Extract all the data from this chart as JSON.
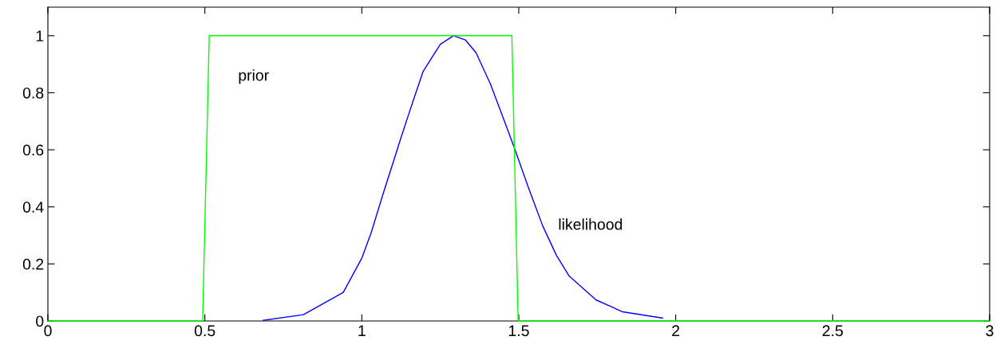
{
  "chart_data": {
    "type": "line",
    "xlim": [
      0,
      3
    ],
    "ylim": [
      0,
      1.1
    ],
    "xticks": [
      0,
      0.5,
      1,
      1.5,
      2,
      2.5,
      3
    ],
    "yticks": [
      0,
      0.2,
      0.4,
      0.6,
      0.8,
      1
    ],
    "grid": false,
    "marker": "none",
    "line_style": "solid",
    "series": [
      {
        "name": "likelihood",
        "color": "#0000ff",
        "x": [
          0.686,
          0.814,
          0.941,
          1.0,
          1.03,
          1.068,
          1.127,
          1.16,
          1.195,
          1.25,
          1.292,
          1.33,
          1.364,
          1.41,
          1.449,
          1.487,
          1.53,
          1.576,
          1.62,
          1.661,
          1.746,
          1.831,
          1.958
        ],
        "values": [
          0.002,
          0.022,
          0.1,
          0.22,
          0.31,
          0.446,
          0.65,
          0.76,
          0.874,
          0.97,
          1.0,
          0.985,
          0.94,
          0.83,
          0.716,
          0.604,
          0.47,
          0.334,
          0.23,
          0.157,
          0.074,
          0.032,
          0.01
        ]
      },
      {
        "name": "prior",
        "color": "#00ff00",
        "x": [
          0,
          0.493,
          0.514,
          1.478,
          1.498,
          3
        ],
        "values": [
          0,
          0,
          1,
          1,
          0,
          0
        ]
      }
    ]
  }
}
